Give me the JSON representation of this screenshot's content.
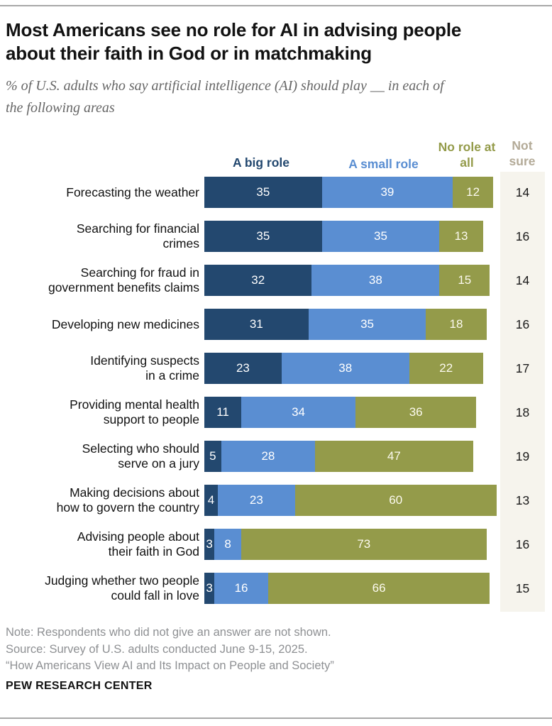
{
  "header": {
    "title_lines": [
      "Most Americans see no role for AI in advising people",
      "about their faith in God or in matchmaking"
    ],
    "subtitle_lines": [
      "% of U.S. adults who say artificial intelligence (AI) should play __ in each of",
      "the following areas"
    ]
  },
  "legend": {
    "big": "A big role",
    "small": "A small role",
    "none": "No role at all",
    "not_sure": "Not sure"
  },
  "colors": {
    "big_role": "#23486f",
    "small_role": "#5a8ed2",
    "no_role": "#949b4a",
    "not_sure_panel": "#f6f4ed",
    "not_sure_header": "#b3aa97",
    "value_label_on_dark": "#ffffff",
    "value_label_on_olive": "#fcfaef",
    "rule": "#a8a8a8"
  },
  "chart_data": {
    "type": "bar",
    "orientation": "horizontal",
    "stacked": true,
    "unit": "%",
    "xlim": [
      0,
      100
    ],
    "legend_position": "top",
    "series_order": [
      "A big role",
      "A small role",
      "No role at all"
    ],
    "extra_column": "Not sure",
    "rows": [
      {
        "category": "Forecasting the weather",
        "category_lines": [
          "Forecasting the weather"
        ],
        "big": 35,
        "small": 39,
        "none": 12,
        "not_sure": 14
      },
      {
        "category": "Searching for financial crimes",
        "category_lines": [
          "Searching for financial",
          "crimes"
        ],
        "big": 35,
        "small": 35,
        "none": 13,
        "not_sure": 16
      },
      {
        "category": "Searching for fraud in government benefits claims",
        "category_lines": [
          "Searching for fraud in",
          "government benefits claims"
        ],
        "big": 32,
        "small": 38,
        "none": 15,
        "not_sure": 14
      },
      {
        "category": "Developing new medicines",
        "category_lines": [
          "Developing new medicines"
        ],
        "big": 31,
        "small": 35,
        "none": 18,
        "not_sure": 16
      },
      {
        "category": "Identifying suspects in a crime",
        "category_lines": [
          "Identifying suspects",
          "in a crime"
        ],
        "big": 23,
        "small": 38,
        "none": 22,
        "not_sure": 17
      },
      {
        "category": "Providing mental health support to people",
        "category_lines": [
          "Providing mental health",
          "support to people"
        ],
        "big": 11,
        "small": 34,
        "none": 36,
        "not_sure": 18
      },
      {
        "category": "Selecting who should serve on a jury",
        "category_lines": [
          "Selecting who should",
          "serve on a jury"
        ],
        "big": 5,
        "small": 28,
        "none": 47,
        "not_sure": 19
      },
      {
        "category": "Making decisions about how to govern the country",
        "category_lines": [
          "Making decisions about",
          "how to govern the country"
        ],
        "big": 4,
        "small": 23,
        "none": 60,
        "not_sure": 13
      },
      {
        "category": "Advising people about their faith in God",
        "category_lines": [
          "Advising people about",
          "their faith in God"
        ],
        "big": 3,
        "small": 8,
        "none": 73,
        "not_sure": 16
      },
      {
        "category": "Judging whether two people could fall in love",
        "category_lines": [
          "Judging whether two people",
          "could fall in love"
        ],
        "big": 3,
        "small": 16,
        "none": 66,
        "not_sure": 15
      }
    ]
  },
  "footer": {
    "note": "Note: Respondents who did not give an answer are not shown.",
    "source": "Source: Survey of U.S. adults conducted June 9-15, 2025.",
    "citation": "“How Americans View AI and Its Impact on People and Society”",
    "brand": "PEW RESEARCH CENTER"
  }
}
